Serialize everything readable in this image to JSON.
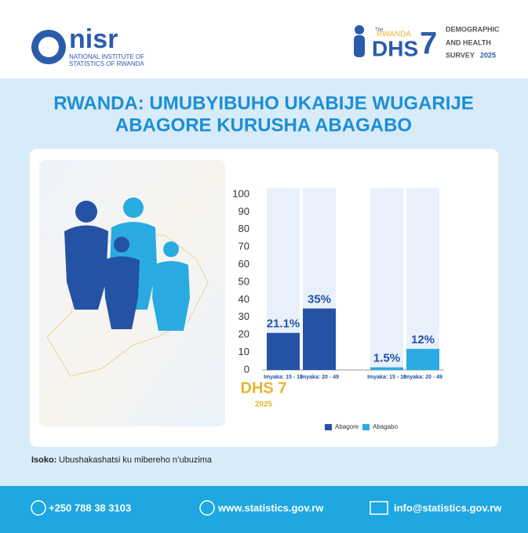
{
  "header": {
    "logo_text": "nisr",
    "logo_line1": "NATIONAL INSTITUTE OF",
    "logo_line2": "STATISTICS OF RWANDA",
    "dhs_the": "The",
    "dhs_country": "RWANDA",
    "dhs_name": "DHS",
    "dhs_number": "7",
    "survey_line1": "DEMOGRAPHIC",
    "survey_line2": "AND HEALTH",
    "survey_line3": "SURVEY",
    "survey_year": "2025"
  },
  "title_line1": "RWANDA: UMUBYIBUHO UKABIJE WUGARIJE",
  "title_line2": "ABAGORE KURUSHA ABAGABO",
  "chart_data": {
    "type": "bar",
    "subtitle": "DHS 7",
    "note": "2025",
    "categories": [
      "Imyaka: 15 - 19",
      "Imyaka: 20 - 49",
      "Imyaka: 15 - 19",
      "Imyaka: 20 - 49"
    ],
    "series": [
      {
        "name": "Abagore",
        "color": "#2453a6",
        "values": [
          21.1,
          35,
          null,
          null
        ],
        "value_labels": [
          "21.1%",
          "35%",
          null,
          null
        ]
      },
      {
        "name": "Abagabo",
        "color": "#29abe2",
        "values": [
          null,
          null,
          1.5,
          12
        ],
        "value_labels": [
          null,
          null,
          "1.5%",
          "12%"
        ]
      }
    ],
    "ylim": [
      0,
      100
    ],
    "yticks": [
      0,
      10,
      20,
      30,
      40,
      50,
      60,
      70,
      80,
      90,
      100
    ],
    "legend": "bottom"
  },
  "source_label": "Isoko:",
  "source_text": "Ubushakashatsi ku mibereho n’ubuzima",
  "footer": {
    "phone": "+250 788 38 3103",
    "website": "www.statistics.gov.rw",
    "email": "info@statistics.gov.rw"
  }
}
